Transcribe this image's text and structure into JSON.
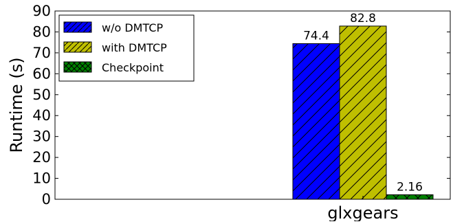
{
  "chart_data": {
    "type": "bar",
    "title": "",
    "xlabel": "",
    "ylabel": "Runtime (s)",
    "ylim": [
      0,
      90
    ],
    "yticks": [
      "0",
      "10",
      "20",
      "30",
      "40",
      "50",
      "60",
      "70",
      "80",
      "90"
    ],
    "categories": [
      "glxgears"
    ],
    "series": [
      {
        "name": "w/o DMTCP",
        "values": [
          74.4
        ],
        "data_labels": [
          "74.4"
        ],
        "color": "#0000ff",
        "hatch": "diagonal"
      },
      {
        "name": "with DMTCP",
        "values": [
          82.8
        ],
        "data_labels": [
          "82.8"
        ],
        "color": "#bfbf00",
        "hatch": "diagonal"
      },
      {
        "name": "Checkpoint",
        "values": [
          2.16
        ],
        "data_labels": [
          "2.16"
        ],
        "color": "#008000",
        "hatch": "cross"
      }
    ],
    "legend_position": "top-left",
    "grid": false
  }
}
